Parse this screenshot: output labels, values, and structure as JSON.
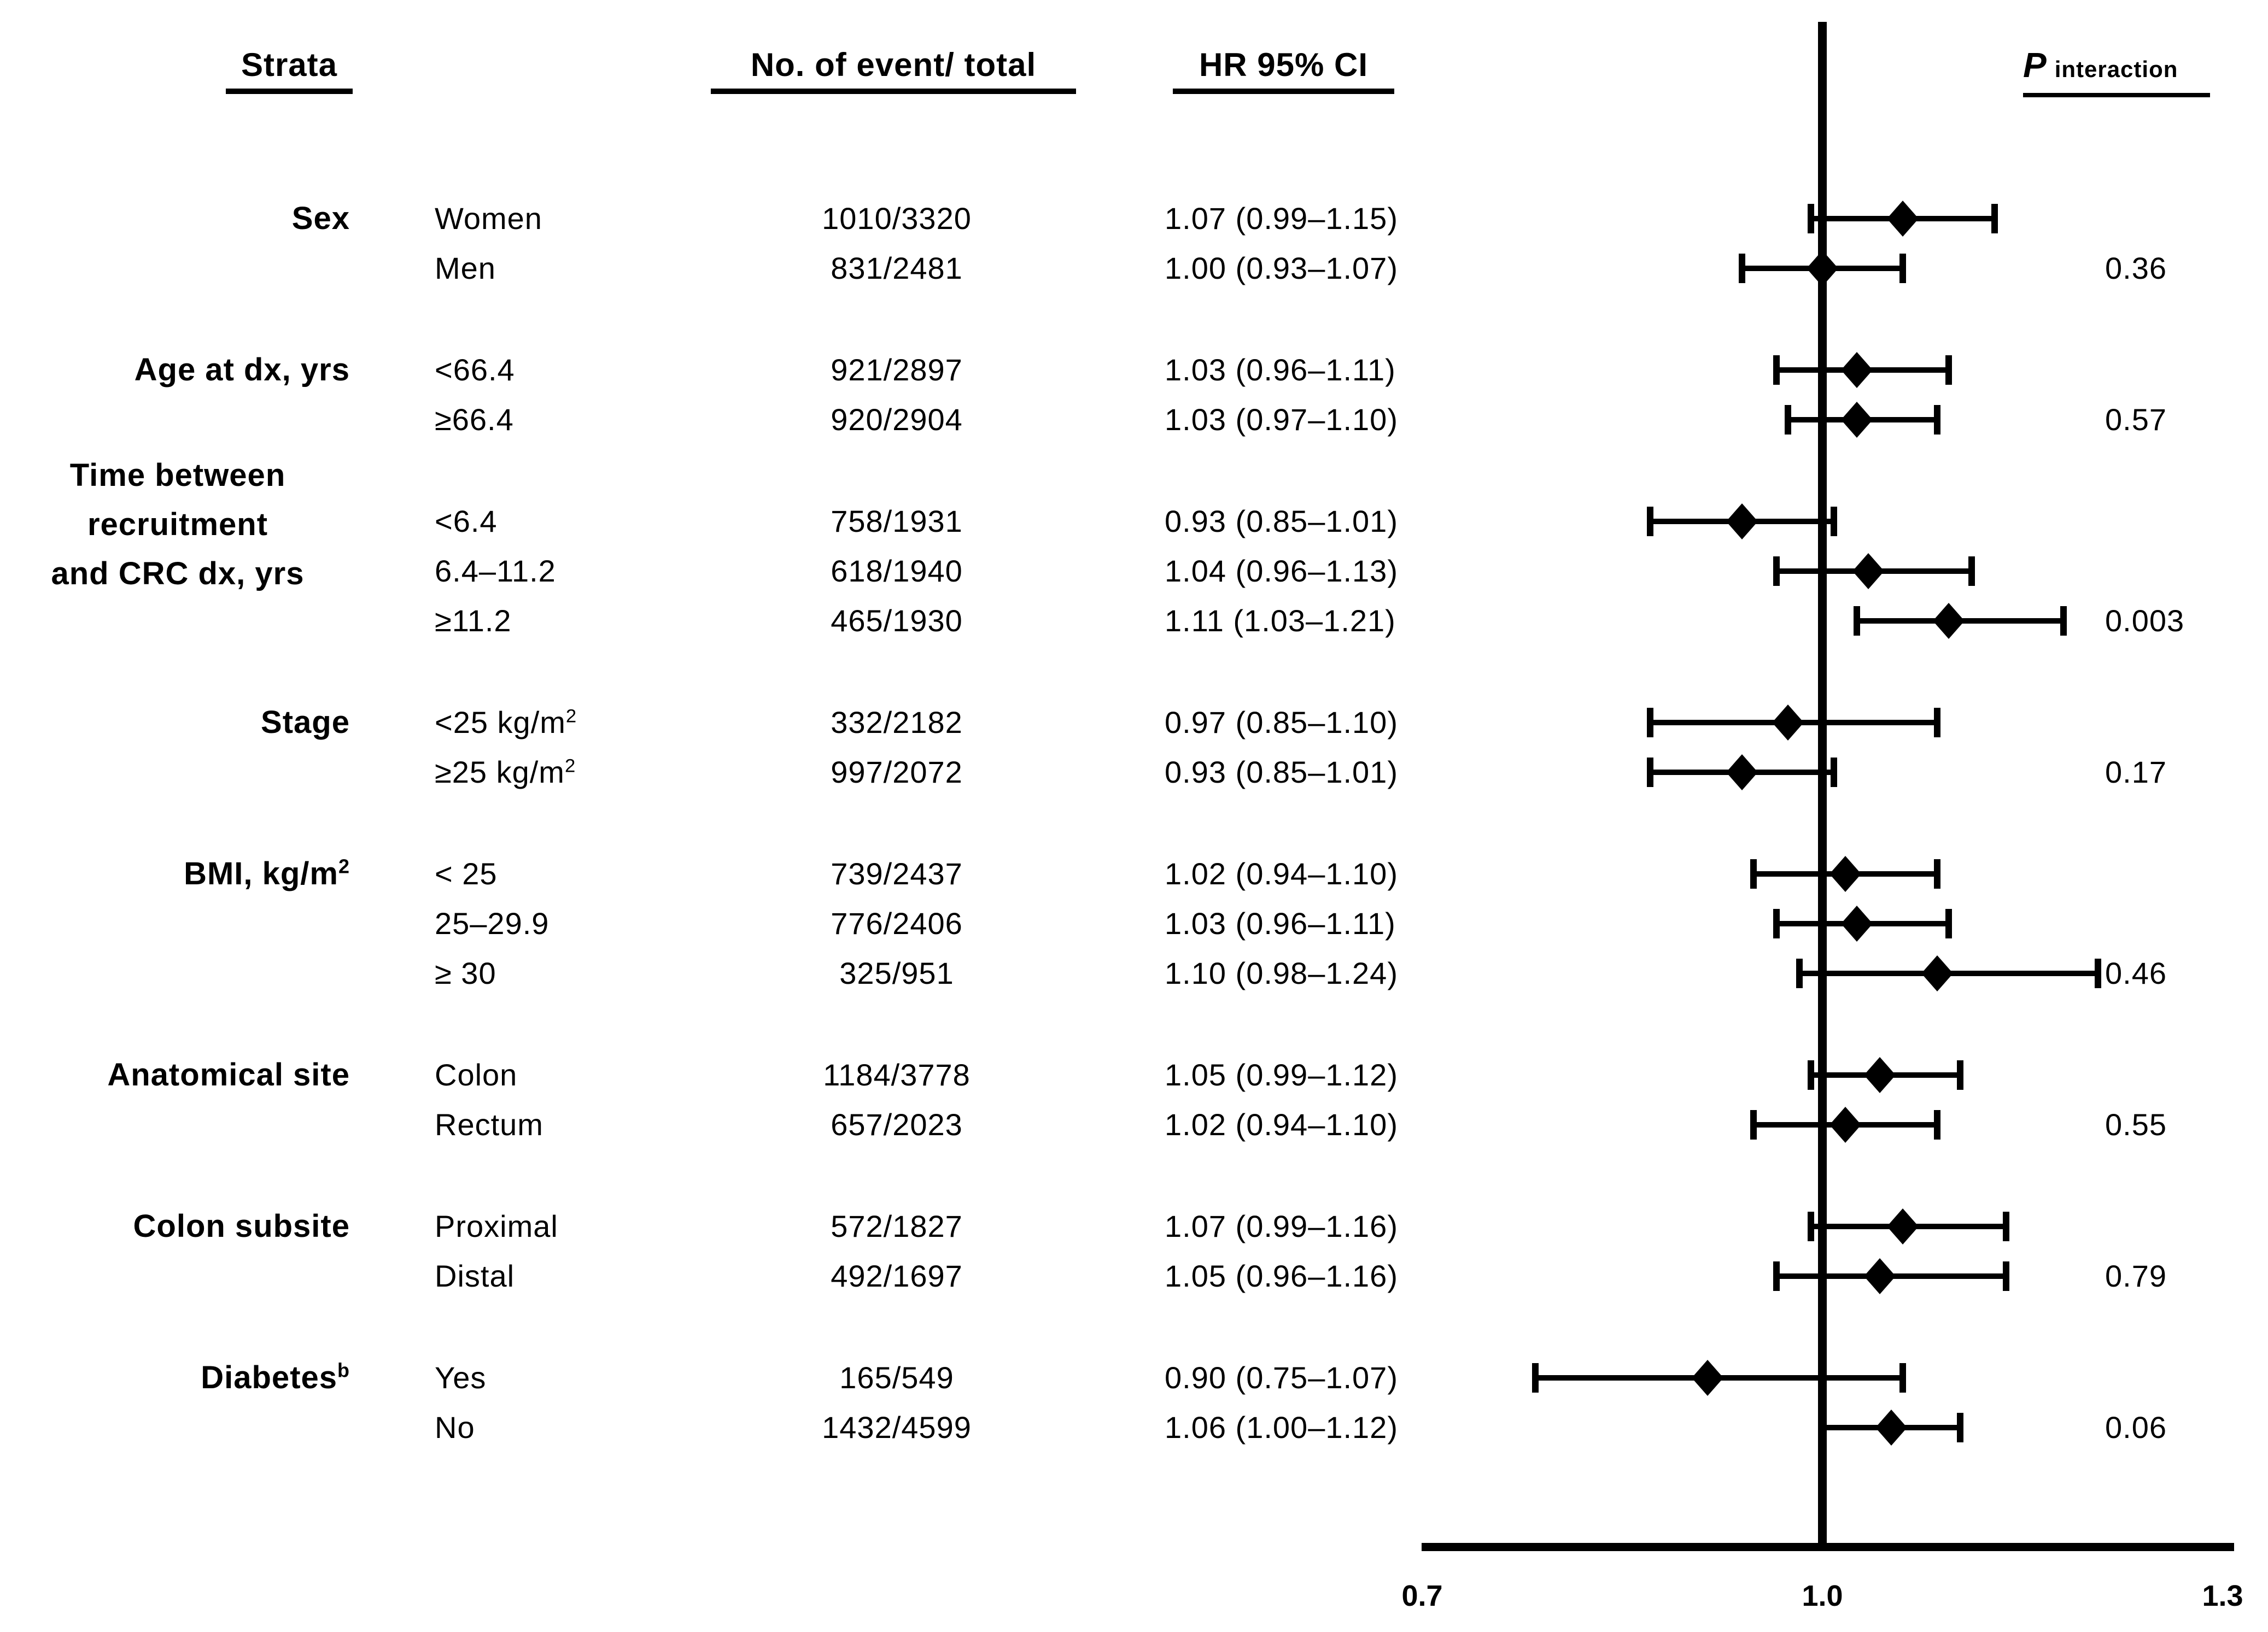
{
  "figure": {
    "headers": {
      "strata": "Strata",
      "events": "No. of event/ total",
      "hr": "HR 95% CI",
      "p_main": "P",
      "p_sub": "interaction"
    }
  },
  "chart_data": {
    "type": "forest",
    "title": "Forest plot of hazard ratios by strata",
    "columns": [
      "Strata",
      "No. of event/ total",
      "HR 95% CI",
      "P interaction"
    ],
    "x_reference_line": 1.0,
    "xlim": [
      0.65,
      1.35
    ],
    "x_ticks": [
      0.7,
      1.0,
      1.3
    ],
    "x_tick_labels": [
      "0.7",
      "1.0",
      "1.3"
    ],
    "grid": false,
    "marker": "diamond",
    "colors": {
      "marker": "#000000",
      "line": "#000000",
      "text": "#000000",
      "background": "#ffffff"
    },
    "groups": [
      {
        "label": [
          "Sex"
        ],
        "p_interaction": "0.36",
        "rows": [
          {
            "subgroup": "Women",
            "events_total": "1010/3320",
            "hr_label": "1.07 (0.99–1.15)",
            "hr": 1.07,
            "ci_low": 0.99,
            "ci_high": 1.15
          },
          {
            "subgroup": "Men",
            "events_total": "831/2481",
            "hr_label": "1.00 (0.93–1.07)",
            "hr": 1.0,
            "ci_low": 0.93,
            "ci_high": 1.07
          }
        ]
      },
      {
        "label": [
          "Age at dx, yrs"
        ],
        "p_interaction": "0.57",
        "rows": [
          {
            "subgroup": "<66.4",
            "events_total": "921/2897",
            "hr_label": "1.03 (0.96–1.11)",
            "hr": 1.03,
            "ci_low": 0.96,
            "ci_high": 1.11
          },
          {
            "subgroup": "≥66.4",
            "events_total": "920/2904",
            "hr_label": "1.03 (0.97–1.10)",
            "hr": 1.03,
            "ci_low": 0.97,
            "ci_high": 1.1
          }
        ]
      },
      {
        "label": [
          "Time between",
          "recruitment",
          "and CRC dx, yrs"
        ],
        "p_interaction": "0.003",
        "rows": [
          {
            "subgroup": "<6.4",
            "events_total": "758/1931",
            "hr_label": "0.93 (0.85–1.01)",
            "hr": 0.93,
            "ci_low": 0.85,
            "ci_high": 1.01
          },
          {
            "subgroup": "6.4–11.2",
            "events_total": "618/1940",
            "hr_label": "1.04 (0.96–1.13)",
            "hr": 1.04,
            "ci_low": 0.96,
            "ci_high": 1.13
          },
          {
            "subgroup": "≥11.2",
            "events_total": "465/1930",
            "hr_label": "1.11 (1.03–1.21)",
            "hr": 1.11,
            "ci_low": 1.03,
            "ci_high": 1.21
          }
        ]
      },
      {
        "label": [
          "Stage"
        ],
        "p_interaction": "0.17",
        "rows": [
          {
            "subgroup": "<25 kg/m²",
            "events_total": "332/2182",
            "hr_label": "0.97 (0.85–1.10)",
            "hr": 0.97,
            "ci_low": 0.85,
            "ci_high": 1.1
          },
          {
            "subgroup": "≥25 kg/m²",
            "events_total": "997/2072",
            "hr_label": "0.93 (0.85–1.01)",
            "hr": 0.93,
            "ci_low": 0.85,
            "ci_high": 1.01
          }
        ]
      },
      {
        "label": [
          "BMI, kg/m²"
        ],
        "p_interaction": "0.46",
        "rows": [
          {
            "subgroup": "< 25",
            "events_total": "739/2437",
            "hr_label": "1.02 (0.94–1.10)",
            "hr": 1.02,
            "ci_low": 0.94,
            "ci_high": 1.1
          },
          {
            "subgroup": "25–29.9",
            "events_total": "776/2406",
            "hr_label": "1.03 (0.96–1.11)",
            "hr": 1.03,
            "ci_low": 0.96,
            "ci_high": 1.11
          },
          {
            "subgroup": "≥ 30",
            "events_total": "325/951",
            "hr_label": "1.10 (0.98–1.24)",
            "hr": 1.1,
            "ci_low": 0.98,
            "ci_high": 1.24
          }
        ]
      },
      {
        "label": [
          "Anatomical site"
        ],
        "p_interaction": "0.55",
        "rows": [
          {
            "subgroup": "Colon",
            "events_total": "1184/3778",
            "hr_label": "1.05 (0.99–1.12)",
            "hr": 1.05,
            "ci_low": 0.99,
            "ci_high": 1.12
          },
          {
            "subgroup": "Rectum",
            "events_total": "657/2023",
            "hr_label": "1.02 (0.94–1.10)",
            "hr": 1.02,
            "ci_low": 0.94,
            "ci_high": 1.1
          }
        ]
      },
      {
        "label": [
          "Colon subsite"
        ],
        "p_interaction": "0.79",
        "rows": [
          {
            "subgroup": "Proximal",
            "events_total": "572/1827",
            "hr_label": "1.07 (0.99–1.16)",
            "hr": 1.07,
            "ci_low": 0.99,
            "ci_high": 1.16
          },
          {
            "subgroup": "Distal",
            "events_total": "492/1697",
            "hr_label": "1.05 (0.96–1.16)",
            "hr": 1.05,
            "ci_low": 0.96,
            "ci_high": 1.16
          }
        ]
      },
      {
        "label": [
          "Diabetes"
        ],
        "label_sup": "b",
        "p_interaction": "0.06",
        "rows": [
          {
            "subgroup": "Yes",
            "events_total": "165/549",
            "hr_label": "0.90 (0.75–1.07)",
            "hr": 0.9,
            "ci_low": 0.75,
            "ci_high": 1.07
          },
          {
            "subgroup": "No",
            "events_total": "1432/4599",
            "hr_label": "1.06 (1.00–1.12)",
            "hr": 1.06,
            "ci_low": 1.0,
            "ci_high": 1.12
          }
        ]
      }
    ]
  }
}
